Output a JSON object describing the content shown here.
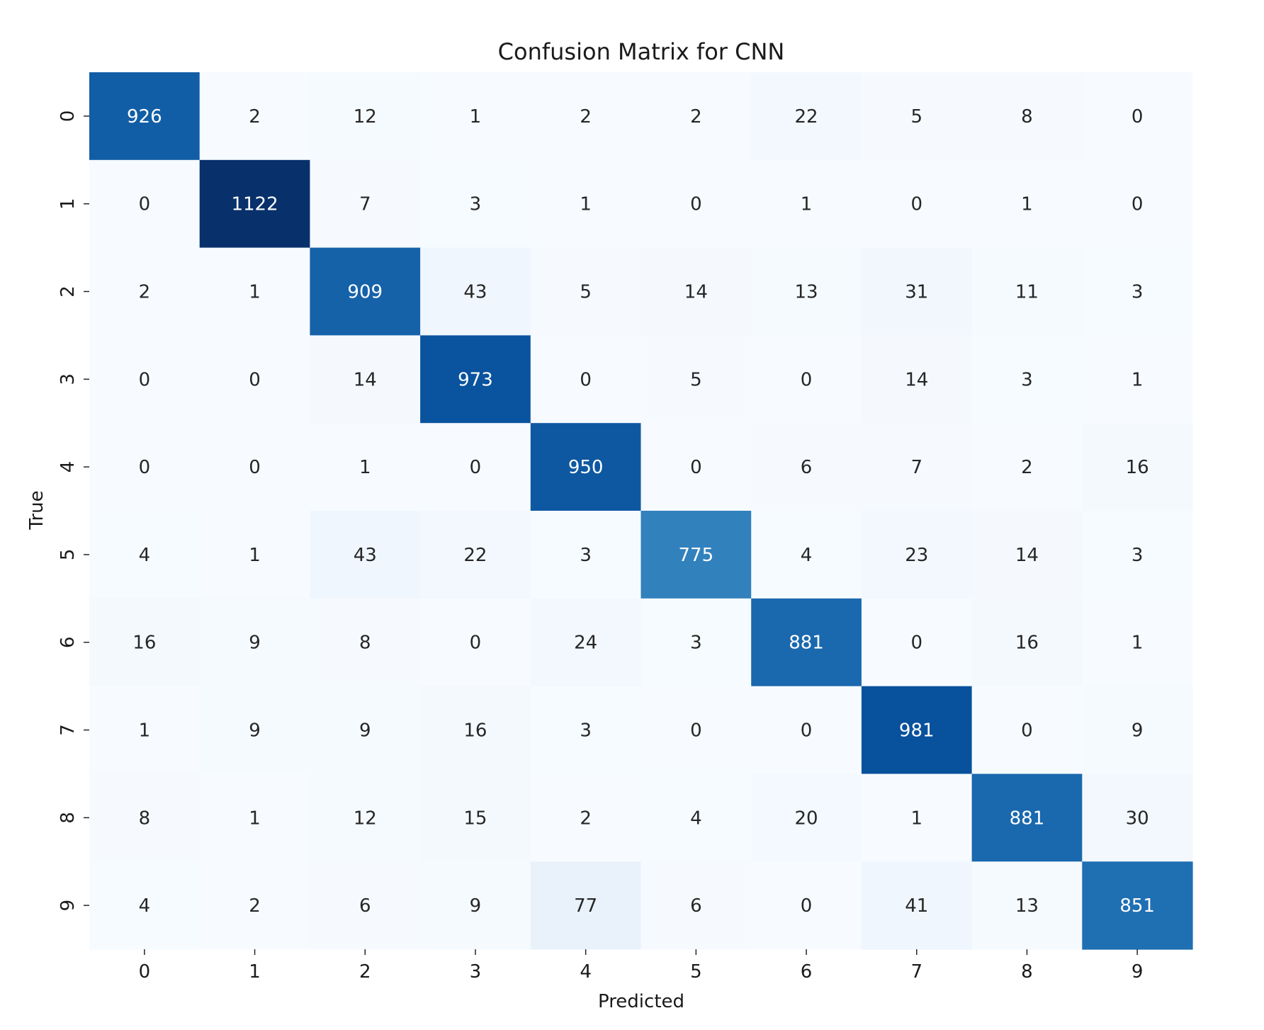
{
  "chart_data": {
    "type": "heatmap",
    "title": "Confusion Matrix for CNN",
    "xlabel": "Predicted",
    "ylabel": "True",
    "x_categories": [
      "0",
      "1",
      "2",
      "3",
      "4",
      "5",
      "6",
      "7",
      "8",
      "9"
    ],
    "y_categories": [
      "0",
      "1",
      "2",
      "3",
      "4",
      "5",
      "6",
      "7",
      "8",
      "9"
    ],
    "values": [
      [
        926,
        2,
        12,
        1,
        2,
        2,
        22,
        5,
        8,
        0
      ],
      [
        0,
        1122,
        7,
        3,
        1,
        0,
        1,
        0,
        1,
        0
      ],
      [
        2,
        1,
        909,
        43,
        5,
        14,
        13,
        31,
        11,
        3
      ],
      [
        0,
        0,
        14,
        973,
        0,
        5,
        0,
        14,
        3,
        1
      ],
      [
        0,
        0,
        1,
        0,
        950,
        0,
        6,
        7,
        2,
        16
      ],
      [
        4,
        1,
        43,
        22,
        3,
        775,
        4,
        23,
        14,
        3
      ],
      [
        16,
        9,
        8,
        0,
        24,
        3,
        881,
        0,
        16,
        1
      ],
      [
        1,
        9,
        9,
        16,
        3,
        0,
        0,
        981,
        0,
        9
      ],
      [
        8,
        1,
        12,
        15,
        2,
        4,
        20,
        1,
        881,
        30
      ],
      [
        4,
        2,
        6,
        9,
        77,
        6,
        0,
        41,
        13,
        851
      ]
    ],
    "colormap": "Blues",
    "colorbar": false,
    "grid": false
  }
}
